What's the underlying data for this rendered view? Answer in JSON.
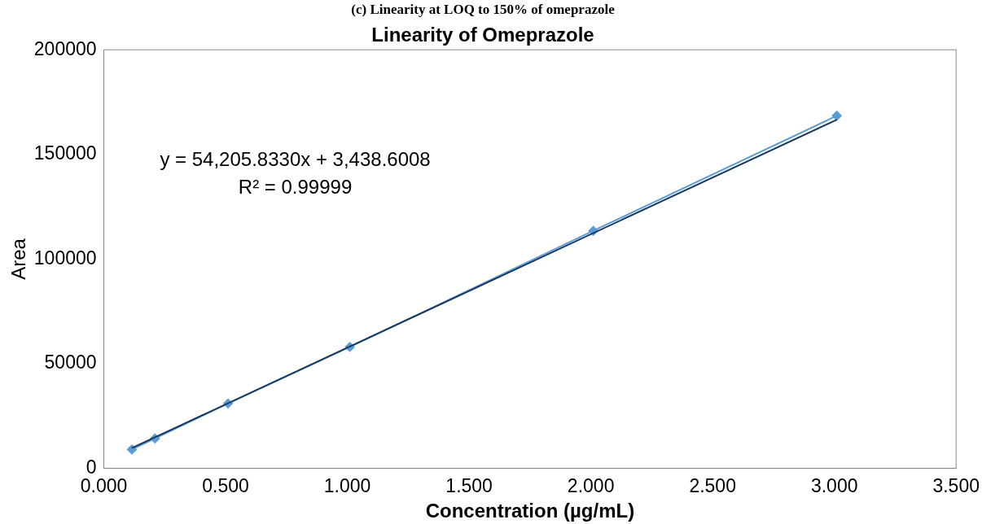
{
  "chart_data": {
    "type": "line",
    "title": "(c) Linearity at LOQ to 150% of omeprazole",
    "subtitle": "Linearity of Omeprazole",
    "xlabel": "Concentration (µg/mL)",
    "ylabel": "Area",
    "series": [
      {
        "color": "#5b9bd5",
        "marker": "diamond",
        "x": [
          0.115,
          0.21,
          0.51,
          1.01,
          2.01,
          3.01
        ],
        "values": [
          9000,
          14300,
          31000,
          58000,
          113500,
          168500
        ]
      },
      {
        "color": "#17375e",
        "marker": "none",
        "x": [
          0.115,
          3.01
        ],
        "values": [
          9700,
          166600
        ]
      }
    ],
    "xlim": [
      0,
      3.5
    ],
    "xticks": [
      {
        "value": 0,
        "label": "0.000"
      },
      {
        "value": 0.5,
        "label": "0.500"
      },
      {
        "value": 1,
        "label": "1.000"
      },
      {
        "value": 1.5,
        "label": "1.500"
      },
      {
        "value": 2,
        "label": "2.000"
      },
      {
        "value": 2.5,
        "label": "2.500"
      },
      {
        "value": 3,
        "label": "3.000"
      },
      {
        "value": 3.5,
        "label": "3.500"
      }
    ],
    "ylim": [
      0,
      200000
    ],
    "yticks": [
      0,
      50000,
      100000,
      150000,
      200000
    ],
    "annotations": [
      "y = 54,205.8330x + 3,438.6008",
      "R² = 0.99999"
    ],
    "grid": false,
    "legend": false
  }
}
